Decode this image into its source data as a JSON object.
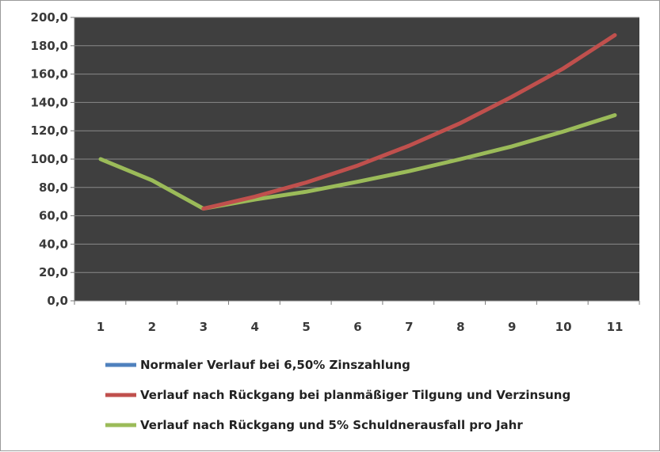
{
  "chart_data": {
    "type": "line",
    "x": [
      1,
      2,
      3,
      4,
      5,
      6,
      7,
      8,
      9,
      10,
      11
    ],
    "x_tick_labels": [
      "1",
      "2",
      "3",
      "4",
      "5",
      "6",
      "7",
      "8",
      "9",
      "10",
      "11"
    ],
    "y_tick_labels": [
      "0,0",
      "20,0",
      "40,0",
      "60,0",
      "80,0",
      "100,0",
      "120,0",
      "140,0",
      "160,0",
      "180,0",
      "200,0"
    ],
    "ylim": [
      0,
      200
    ],
    "y_tick_step": 20,
    "grid": "horizontal",
    "plot_background": "#3f3f3f",
    "legend_position": "bottom",
    "series": [
      {
        "name": "Normaler Verlauf bei 6,50% Zinszahlung",
        "color": "#4f81bd",
        "values": [
          null,
          null,
          null,
          null,
          null,
          null,
          null,
          null,
          null,
          null,
          null
        ]
      },
      {
        "name": "Verlauf nach Rückgang bei planmäßiger Tilgung und Verzinsung",
        "color": "#c0504d",
        "values": [
          null,
          null,
          65.0,
          73.5,
          83.5,
          95.5,
          109.5,
          125.5,
          144.0,
          164.0,
          187.5
        ]
      },
      {
        "name": "Verlauf nach Rückgang und 5% Schuldnerausfall pro Jahr",
        "color": "#9bbb59",
        "values": [
          100.0,
          85.0,
          65.0,
          71.5,
          77.0,
          84.0,
          91.5,
          100.0,
          109.0,
          119.5,
          131.0
        ]
      }
    ]
  }
}
